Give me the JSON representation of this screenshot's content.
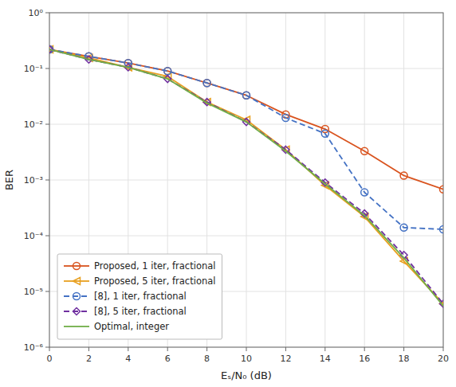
{
  "chart_data": {
    "type": "line",
    "xlabel": "Eₛ/N₀ (dB)",
    "ylabel": "BER",
    "x": [
      0,
      2,
      4,
      6,
      8,
      10,
      12,
      14,
      16,
      18,
      20
    ],
    "series": [
      {
        "name": "Proposed, 1 iter, fractional",
        "color": "#d9531e",
        "marker": "circle",
        "line_style": "solid",
        "values": [
          0.22,
          0.165,
          0.125,
          0.09,
          0.055,
          0.033,
          0.015,
          0.0082,
          0.0033,
          0.0012,
          0.00068
        ]
      },
      {
        "name": "Proposed, 5 iter, fractional",
        "color": "#e8a020",
        "marker": "triangle-left",
        "line_style": "solid",
        "values": [
          0.22,
          0.155,
          0.105,
          0.072,
          0.025,
          0.012,
          0.0035,
          0.0008,
          0.00022,
          3.5e-05,
          6e-06
        ]
      },
      {
        "name": "[8], 1 iter, fractional",
        "color": "#4472c4",
        "marker": "circle",
        "line_style": "dashed",
        "values": [
          0.22,
          0.165,
          0.125,
          0.09,
          0.055,
          0.033,
          0.013,
          0.0068,
          0.0006,
          0.00014,
          0.00013
        ]
      },
      {
        "name": "[8], 5 iter, fractional",
        "color": "#7030a0",
        "marker": "diamond",
        "line_style": "dashed",
        "values": [
          0.22,
          0.145,
          0.105,
          0.065,
          0.025,
          0.011,
          0.0035,
          0.0009,
          0.00025,
          4.5e-05,
          6e-06
        ]
      },
      {
        "name": "Optimal, integer",
        "color": "#70ad47",
        "marker": "none",
        "line_style": "solid",
        "values": [
          0.22,
          0.145,
          0.105,
          0.065,
          0.024,
          0.011,
          0.0033,
          0.00085,
          0.00023,
          4e-05,
          5.5e-06
        ]
      }
    ],
    "xlim": [
      0,
      20
    ],
    "ylim": [
      1e-06,
      1
    ],
    "xticks": [
      0,
      2,
      4,
      6,
      8,
      10,
      12,
      14,
      16,
      18,
      20
    ],
    "yticks": [
      {
        "value": 1e-06,
        "label": "10⁻⁶"
      },
      {
        "value": 1e-05,
        "label": "10⁻⁵"
      },
      {
        "value": 0.0001,
        "label": "10⁻⁴"
      },
      {
        "value": 0.001,
        "label": "10⁻³"
      },
      {
        "value": 0.01,
        "label": "10⁻²"
      },
      {
        "value": 0.1,
        "label": "10⁻¹"
      },
      {
        "value": 1,
        "label": "10⁰"
      }
    ],
    "log": "y",
    "grid": true,
    "legend": "lower left"
  }
}
